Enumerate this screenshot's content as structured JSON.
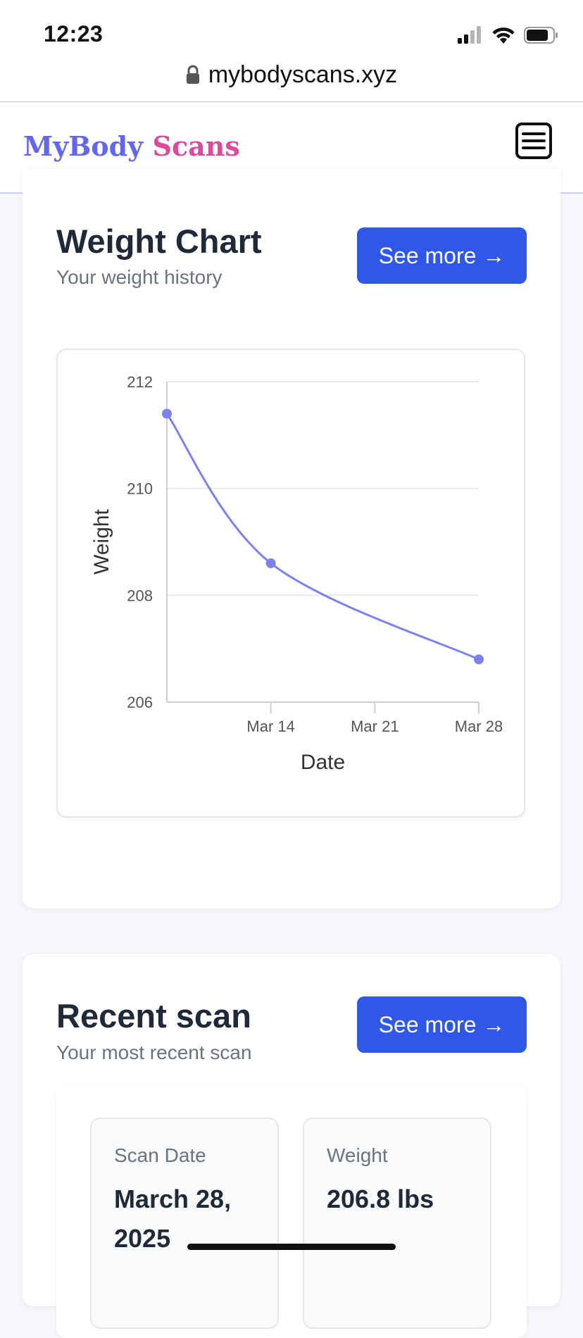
{
  "status_bar": {
    "time": "12:23"
  },
  "browser": {
    "url": "mybodyscans.xyz"
  },
  "navbar": {
    "logo_part1": "MyBody",
    "logo_part2": "Scans",
    "menu_icon": "hamburger-menu-icon"
  },
  "colors": {
    "accent": "#2f57e8",
    "logo_blue": "#6366f1",
    "logo_pink": "#db4b9a",
    "chart_line": "#7b83eb"
  },
  "weight_card": {
    "title": "Weight Chart",
    "subtitle": "Your weight history",
    "button_label": "See more →"
  },
  "chart_data": {
    "type": "line",
    "x": [
      "Mar 7",
      "Mar 14",
      "Mar 28"
    ],
    "series": [
      {
        "values": [
          211.4,
          208.6,
          206.8
        ]
      }
    ],
    "xticks": [
      "Mar 14",
      "Mar 21",
      "Mar 28"
    ],
    "yticks": [
      206,
      208,
      210,
      212
    ],
    "ylim": [
      206,
      212
    ],
    "xlabel": "Date",
    "ylabel": "Weight",
    "grid": true,
    "legend": "none"
  },
  "recent_card": {
    "title": "Recent scan",
    "subtitle": "Your most recent scan",
    "button_label": "See more →",
    "stats": [
      {
        "label": "Scan Date",
        "value": "March 28, 2025"
      },
      {
        "label": "Weight",
        "value": "206.8 lbs"
      }
    ]
  }
}
